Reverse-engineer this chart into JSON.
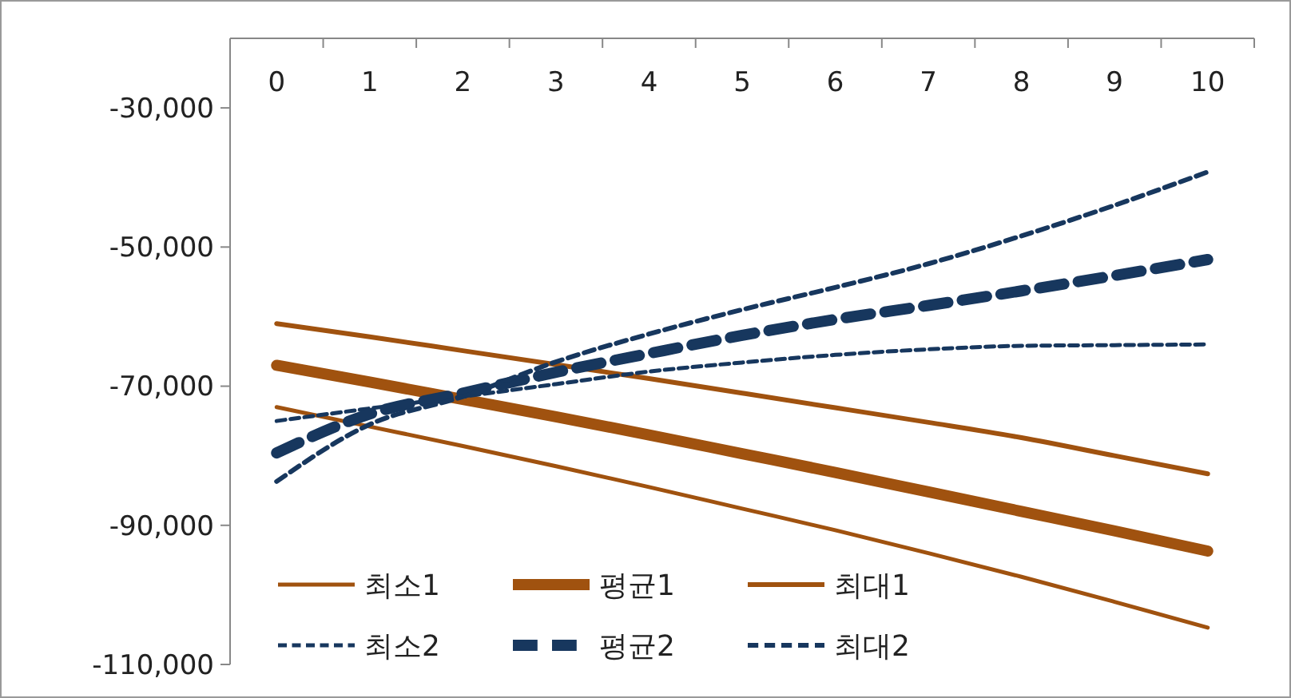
{
  "chart_data": {
    "type": "line",
    "categories": [
      "0",
      "1",
      "2",
      "3",
      "4",
      "5",
      "6",
      "7",
      "8",
      "9",
      "10"
    ],
    "series": [
      {
        "name": "최소1",
        "color": "#a0520f",
        "line_style": "solid",
        "values": [
          -73000,
          -75800,
          -78600,
          -81500,
          -84500,
          -87600,
          -90700,
          -94000,
          -97400,
          -101000,
          -104700
        ]
      },
      {
        "name": "평균1",
        "color": "#a0520f",
        "line_style": "solid",
        "values": [
          -67000,
          -69400,
          -71900,
          -74400,
          -77000,
          -79700,
          -82400,
          -85200,
          -88000,
          -90800,
          -93700
        ]
      },
      {
        "name": "최대1",
        "color": "#a0520f",
        "line_style": "solid",
        "values": [
          -61000,
          -62900,
          -64900,
          -66900,
          -68900,
          -71000,
          -73100,
          -75200,
          -77400,
          -80000,
          -82600
        ]
      },
      {
        "name": "최소2",
        "color": "#17375e",
        "line_style": "dashed",
        "values": [
          -75000,
          -73200,
          -71500,
          -69700,
          -67900,
          -66600,
          -65500,
          -64700,
          -64200,
          -64100,
          -64000
        ]
      },
      {
        "name": "평균2",
        "color": "#17375e",
        "line_style": "dashed",
        "values": [
          -79600,
          -74000,
          -71000,
          -68000,
          -65300,
          -62700,
          -60400,
          -58400,
          -56300,
          -54100,
          -51800
        ]
      },
      {
        "name": "최대2",
        "color": "#17375e",
        "line_style": "dashed",
        "values": [
          -83700,
          -75500,
          -71500,
          -66500,
          -62500,
          -59000,
          -55800,
          -52400,
          -48400,
          -44000,
          -39200
        ]
      }
    ],
    "ylim": [
      -110000,
      -20000
    ],
    "yticks": [
      {
        "value": -110000,
        "label": "-110,000"
      },
      {
        "value": -90000,
        "label": "-90,000"
      },
      {
        "value": -70000,
        "label": "-70,000"
      },
      {
        "value": -50000,
        "label": "-50,000"
      },
      {
        "value": -30000,
        "label": "-30,000"
      }
    ],
    "grid": false,
    "legend": "bottom left",
    "marker": "none"
  }
}
